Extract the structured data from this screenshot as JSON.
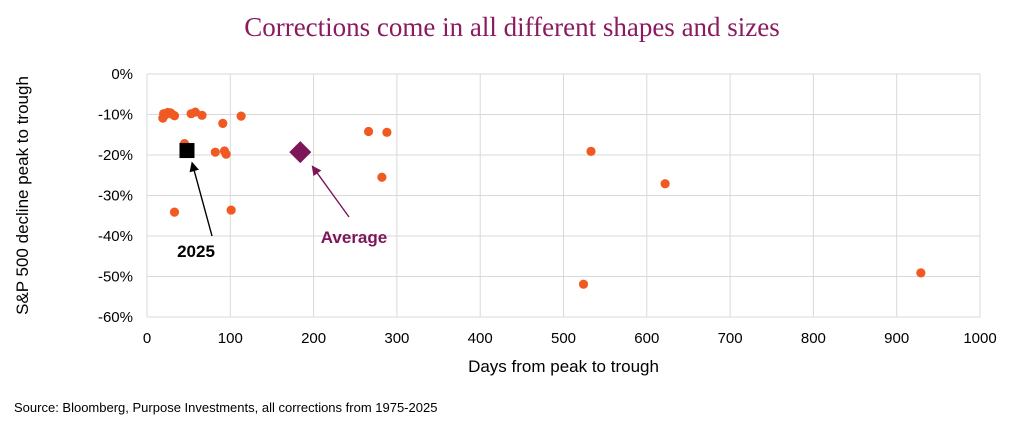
{
  "chart_data": {
    "type": "scatter",
    "title": "Corrections come in all different shapes and sizes",
    "xlabel": "Days from peak to trough",
    "ylabel": "S&P 500 decline peak to trough",
    "xlim": [
      0,
      1000
    ],
    "ylim": [
      -60,
      0
    ],
    "x_ticks": [
      0,
      100,
      200,
      300,
      400,
      500,
      600,
      700,
      800,
      900,
      1000
    ],
    "x_tick_labels": [
      "0",
      "100",
      "200",
      "300",
      "400",
      "500",
      "600",
      "700",
      "800",
      "900",
      "1000"
    ],
    "y_ticks": [
      0,
      -10,
      -20,
      -30,
      -40,
      -50,
      -60
    ],
    "y_tick_labels": [
      "0%",
      "-10%",
      "-20%",
      "-30%",
      "-40%",
      "-50%",
      "-60%"
    ],
    "grid": true,
    "series": [
      {
        "marker": "circle",
        "color": "#f05a22",
        "points": [
          [
            19,
            -10.9
          ],
          [
            20,
            -9.8
          ],
          [
            22,
            -10.1
          ],
          [
            25,
            -9.5
          ],
          [
            28,
            -9.6
          ],
          [
            30,
            -9.9
          ],
          [
            33,
            -10.3
          ],
          [
            33,
            -34.1
          ],
          [
            45,
            -17.2
          ],
          [
            53,
            -9.8
          ],
          [
            58,
            -9.4
          ],
          [
            66,
            -10.2
          ],
          [
            82,
            -19.3
          ],
          [
            91,
            -12.2
          ],
          [
            93,
            -19.0
          ],
          [
            95,
            -19.8
          ],
          [
            101,
            -33.6
          ],
          [
            113,
            -10.4
          ],
          [
            266,
            -14.2
          ],
          [
            282,
            -25.5
          ],
          [
            288,
            -14.4
          ],
          [
            524,
            -51.9
          ],
          [
            533,
            -19.1
          ],
          [
            622,
            -27.1
          ],
          [
            929,
            -49.1
          ]
        ]
      },
      {
        "name": "2025",
        "marker": "square",
        "color": "#000000",
        "points": [
          [
            48,
            -18.9
          ]
        ]
      },
      {
        "name": "Average",
        "marker": "diamond",
        "color": "#7d1659",
        "points": [
          [
            184,
            -19.3
          ]
        ]
      }
    ],
    "annotations": [
      {
        "text": "2025",
        "target": [
          48,
          -18.9
        ],
        "color": "#000000"
      },
      {
        "text": "Average",
        "target": [
          184,
          -19.3
        ],
        "color": "#7d1659"
      }
    ]
  },
  "source": "Source: Bloomberg, Purpose Investments, all corrections from 1975-2025"
}
